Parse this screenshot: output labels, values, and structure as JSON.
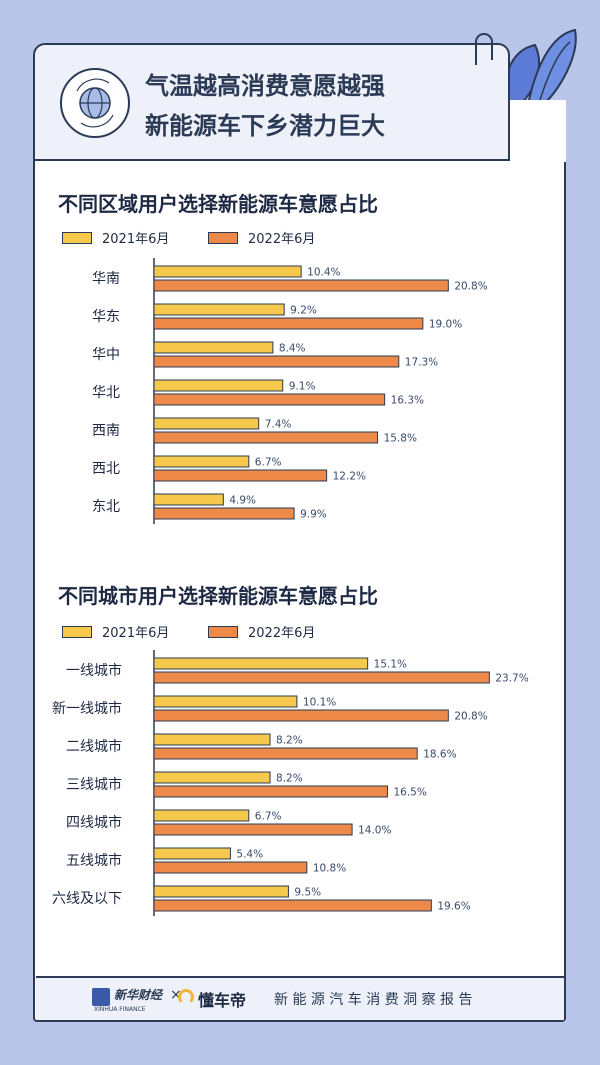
{
  "header": {
    "title_line1": "气温越高消费意愿越强",
    "title_line2": "新能源车下乡潜力巨大",
    "icon": "globe-icon"
  },
  "colors": {
    "series_2021": "#f6c84c",
    "series_2022": "#ee8a49",
    "ink": "#2b3a55",
    "background": "#b9c6ea"
  },
  "chart_data": [
    {
      "type": "bar",
      "orientation": "horizontal",
      "title": "不同区域用户选择新能源车意愿占比",
      "categories": [
        "华南",
        "华东",
        "华中",
        "华北",
        "西南",
        "西北",
        "东北"
      ],
      "series": [
        {
          "name": "2021年6月",
          "values": [
            10.4,
            9.2,
            8.4,
            9.1,
            7.4,
            6.7,
            4.9
          ],
          "labels": [
            "10.4%",
            "9.2%",
            "8.4%",
            "9.1%",
            "7.4%",
            "6.7%",
            "4.9%"
          ]
        },
        {
          "name": "2022年6月",
          "values": [
            20.8,
            19.0,
            17.3,
            16.3,
            15.8,
            12.2,
            9.9
          ],
          "labels": [
            "20.8%",
            "19.0%",
            "17.3%",
            "16.3%",
            "15.8%",
            "12.2%",
            "9.9%"
          ]
        }
      ],
      "legend": "top-left",
      "grid": false
    },
    {
      "type": "bar",
      "orientation": "horizontal",
      "title": "不同城市用户选择新能源车意愿占比",
      "categories": [
        "一线城市",
        "新一线城市",
        "二线城市",
        "三线城市",
        "四线城市",
        "五线城市",
        "六线及以下"
      ],
      "series": [
        {
          "name": "2021年6月",
          "values": [
            15.1,
            10.1,
            8.2,
            8.2,
            6.7,
            5.4,
            9.5
          ],
          "labels": [
            "15.1%",
            "10.1%",
            "8.2%",
            "8.2%",
            "6.7%",
            "5.4%",
            "9.5%"
          ]
        },
        {
          "name": "2022年6月",
          "values": [
            23.7,
            20.8,
            18.6,
            16.5,
            14.0,
            10.8,
            19.6
          ],
          "labels": [
            "23.7%",
            "20.8%",
            "18.6%",
            "16.5%",
            "14.0%",
            "10.8%",
            "19.6%"
          ]
        }
      ],
      "legend": "top-left",
      "grid": false
    }
  ],
  "footer": {
    "logo1_text": "新华财经",
    "logo1_sub": "XINHUA FINANCE",
    "separator": "×",
    "logo2_text": "懂车帝",
    "report_title": "新 能 源 汽 车 消 费 洞 察 报 告"
  }
}
